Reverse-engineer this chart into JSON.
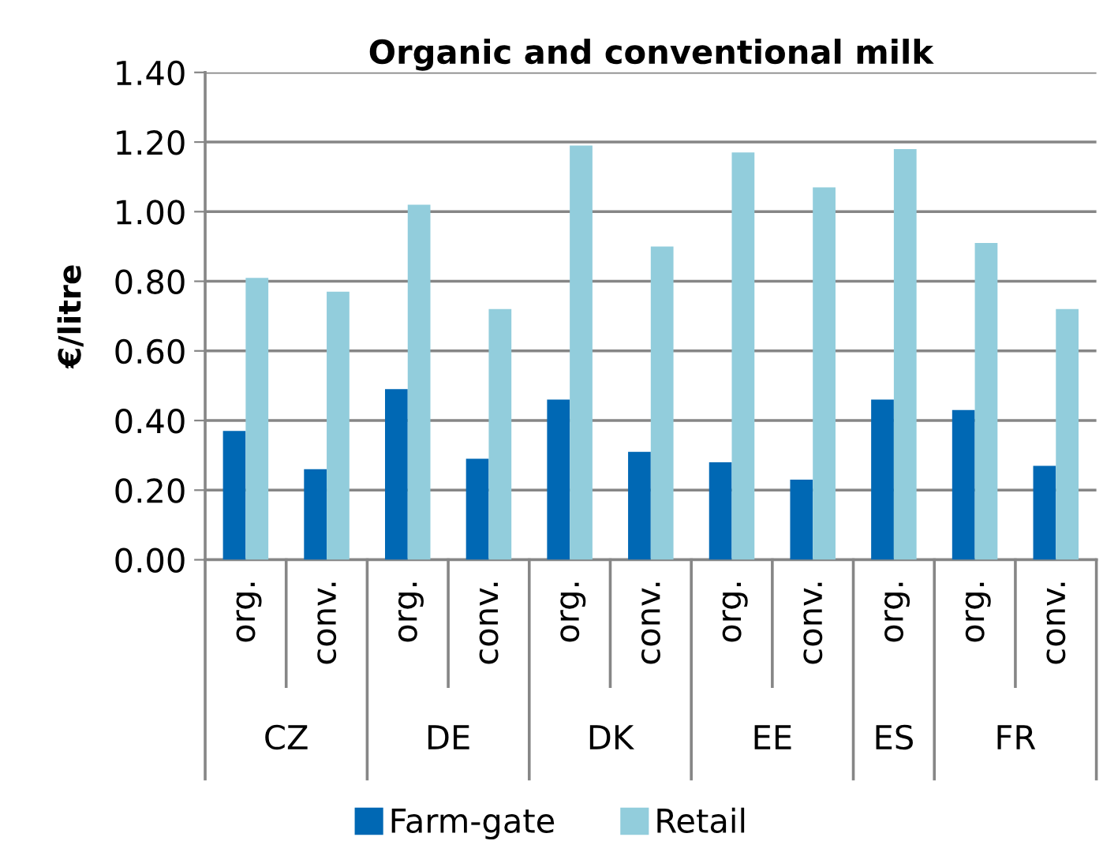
{
  "chart_data": {
    "type": "bar",
    "title": "Organic and conventional milk",
    "ylabel": "€/litre",
    "categories": [
      "org.",
      "conv.",
      "org.",
      "conv.",
      "org.",
      "conv.",
      "org.",
      "conv.",
      "org.",
      "org.",
      "conv."
    ],
    "series": [
      {
        "name": "Farm-gate",
        "color": "#0068b4",
        "values": [
          0.37,
          0.26,
          0.49,
          0.29,
          0.46,
          0.31,
          0.28,
          0.23,
          0.46,
          0.43,
          0.27
        ]
      },
      {
        "name": "Retail",
        "color": "#92cddc",
        "values": [
          0.81,
          0.77,
          1.02,
          0.72,
          1.19,
          0.9,
          1.17,
          1.07,
          1.18,
          0.91,
          0.72
        ]
      }
    ],
    "annotations": [
      "CZ",
      "DE",
      "DK",
      "EE",
      "ES",
      "FR"
    ],
    "ylim": [
      0,
      1.4
    ],
    "yticks": [
      {
        "value": 0,
        "label": "0.00"
      },
      {
        "value": 0.2,
        "label": "0.20"
      },
      {
        "value": 0.4,
        "label": "0.40"
      },
      {
        "value": 0.6,
        "label": "0.60"
      },
      {
        "value": 0.8,
        "label": "0.80"
      },
      {
        "value": 1.0,
        "label": "1.00"
      },
      {
        "value": 1.2,
        "label": "1.20"
      },
      {
        "value": 1.4,
        "label": "1.40"
      }
    ],
    "grid": "y",
    "legend": "bottom"
  }
}
